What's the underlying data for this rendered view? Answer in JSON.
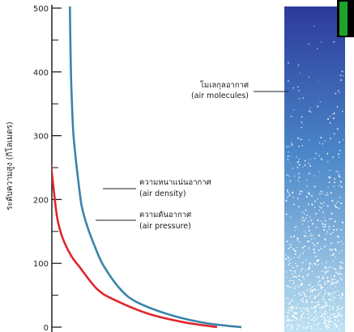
{
  "colors": {
    "pressure_curve": "#e0262b",
    "density_curve": "#3a84a8",
    "column_top": "#2c3a9a",
    "column_mid": "#4a86c8",
    "column_bottom": "#bfe2f2",
    "molecule": "#ffffff",
    "corner_bar": "#1fa22b"
  },
  "chart_data": {
    "type": "line",
    "ylabel": "ระดับความสูง (กิโลเมตร)",
    "xlabel": "",
    "ylim": [
      0,
      500
    ],
    "y_ticks": [
      {
        "value": 0,
        "label": "0"
      },
      {
        "value": 100,
        "label": "100"
      },
      {
        "value": 200,
        "label": "200"
      },
      {
        "value": 300,
        "label": "300"
      },
      {
        "value": 400,
        "label": "400"
      },
      {
        "value": 500,
        "label": "500"
      }
    ],
    "minor_ticks": [
      50,
      150,
      250,
      350,
      450
    ],
    "xlim": [
      0,
      1
    ],
    "series": [
      {
        "key": "pressure",
        "x": [
          1.0,
          0.8,
          0.6,
          0.4,
          0.3,
          0.2,
          0.15,
          0.1,
          0.07,
          0.05,
          0.035,
          0.02,
          0.01,
          0.005,
          0.001
        ],
        "y": [
          0,
          8,
          21,
          43,
          60,
          94,
          112,
          140,
          170,
          212,
          250,
          300,
          375,
          425,
          510
        ]
      },
      {
        "key": "density",
        "x": [
          1.0,
          0.8,
          0.6,
          0.4,
          0.3,
          0.2,
          0.15,
          0.1,
          0.07,
          0.05,
          0.035,
          0.02,
          0.01,
          0.005,
          0.001
        ],
        "y": [
          0,
          6,
          18,
          38,
          58,
          95,
          124,
          160,
          190,
          230,
          265,
          310,
          375,
          430,
          510
        ]
      }
    ]
  },
  "annotations": {
    "molecules": {
      "line1": "โมเลกุลอากาศ",
      "line2": "(air molecules)"
    },
    "density": {
      "line1": "ความหนาแน่นอากาศ",
      "line2": "(air density)"
    },
    "pressure": {
      "line1": "ความดันอากาศ",
      "line2": "(air pressure)"
    }
  }
}
